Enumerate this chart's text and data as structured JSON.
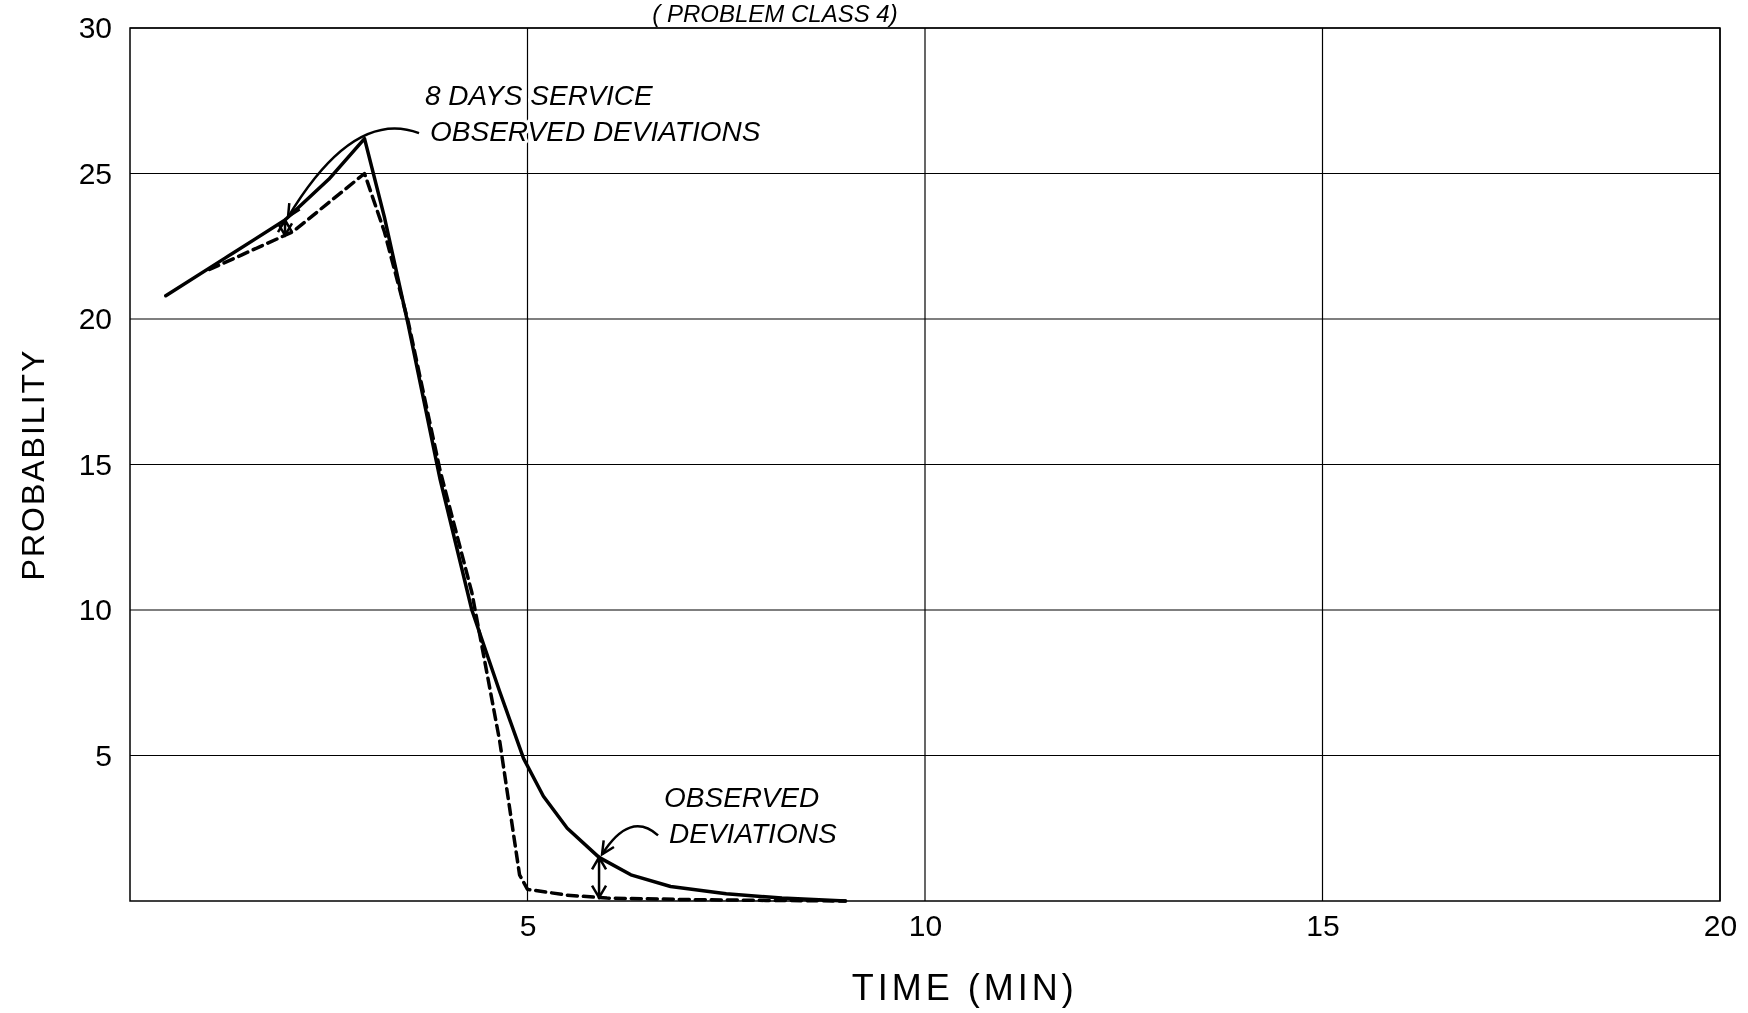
{
  "chart_data": {
    "type": "line",
    "title": "( PROBLEM CLASS 4)",
    "xlabel": "TIME (MIN)",
    "ylabel": "PROBABILITY",
    "xlim": [
      0,
      20
    ],
    "ylim": [
      0,
      30
    ],
    "xticks": [
      5,
      10,
      15,
      20
    ],
    "yticks": [
      5,
      10,
      15,
      20,
      25,
      30
    ],
    "grid": true,
    "series": [
      {
        "color": "#000000",
        "line_style": "solid",
        "x": [
          0.45,
          1.2,
          1.95,
          2.5,
          2.95,
          3.2,
          3.5,
          3.9,
          4.3,
          4.65,
          4.95,
          5.2,
          5.5,
          5.9,
          6.3,
          6.8,
          7.5,
          8.2,
          9.0
        ],
        "values": [
          20.8,
          22.1,
          23.4,
          24.8,
          26.2,
          23.5,
          19.8,
          14.5,
          10.0,
          7.2,
          4.9,
          3.6,
          2.5,
          1.5,
          0.9,
          0.5,
          0.25,
          0.1,
          0.0
        ]
      },
      {
        "color": "#000000",
        "line_style": "dashed",
        "x": [
          1.0,
          2.05,
          2.5,
          2.95,
          3.2,
          3.5,
          3.9,
          4.3,
          4.65,
          4.9,
          5.0,
          5.5,
          6.0,
          7.0,
          8.0,
          9.0
        ],
        "values": [
          21.7,
          23.0,
          24.0,
          25.0,
          23.0,
          19.9,
          14.8,
          10.6,
          5.5,
          0.9,
          0.4,
          0.2,
          0.1,
          0.05,
          0.02,
          0.0
        ]
      }
    ],
    "annotations": [
      {
        "text": "8 DAYS SERVICE\nOBSERVED DEVIATIONS",
        "x": 1.95,
        "y": 23.4
      },
      {
        "text": "OBSERVED\nDEVIATIONS",
        "x": 5.9,
        "y": 1.5
      }
    ]
  }
}
